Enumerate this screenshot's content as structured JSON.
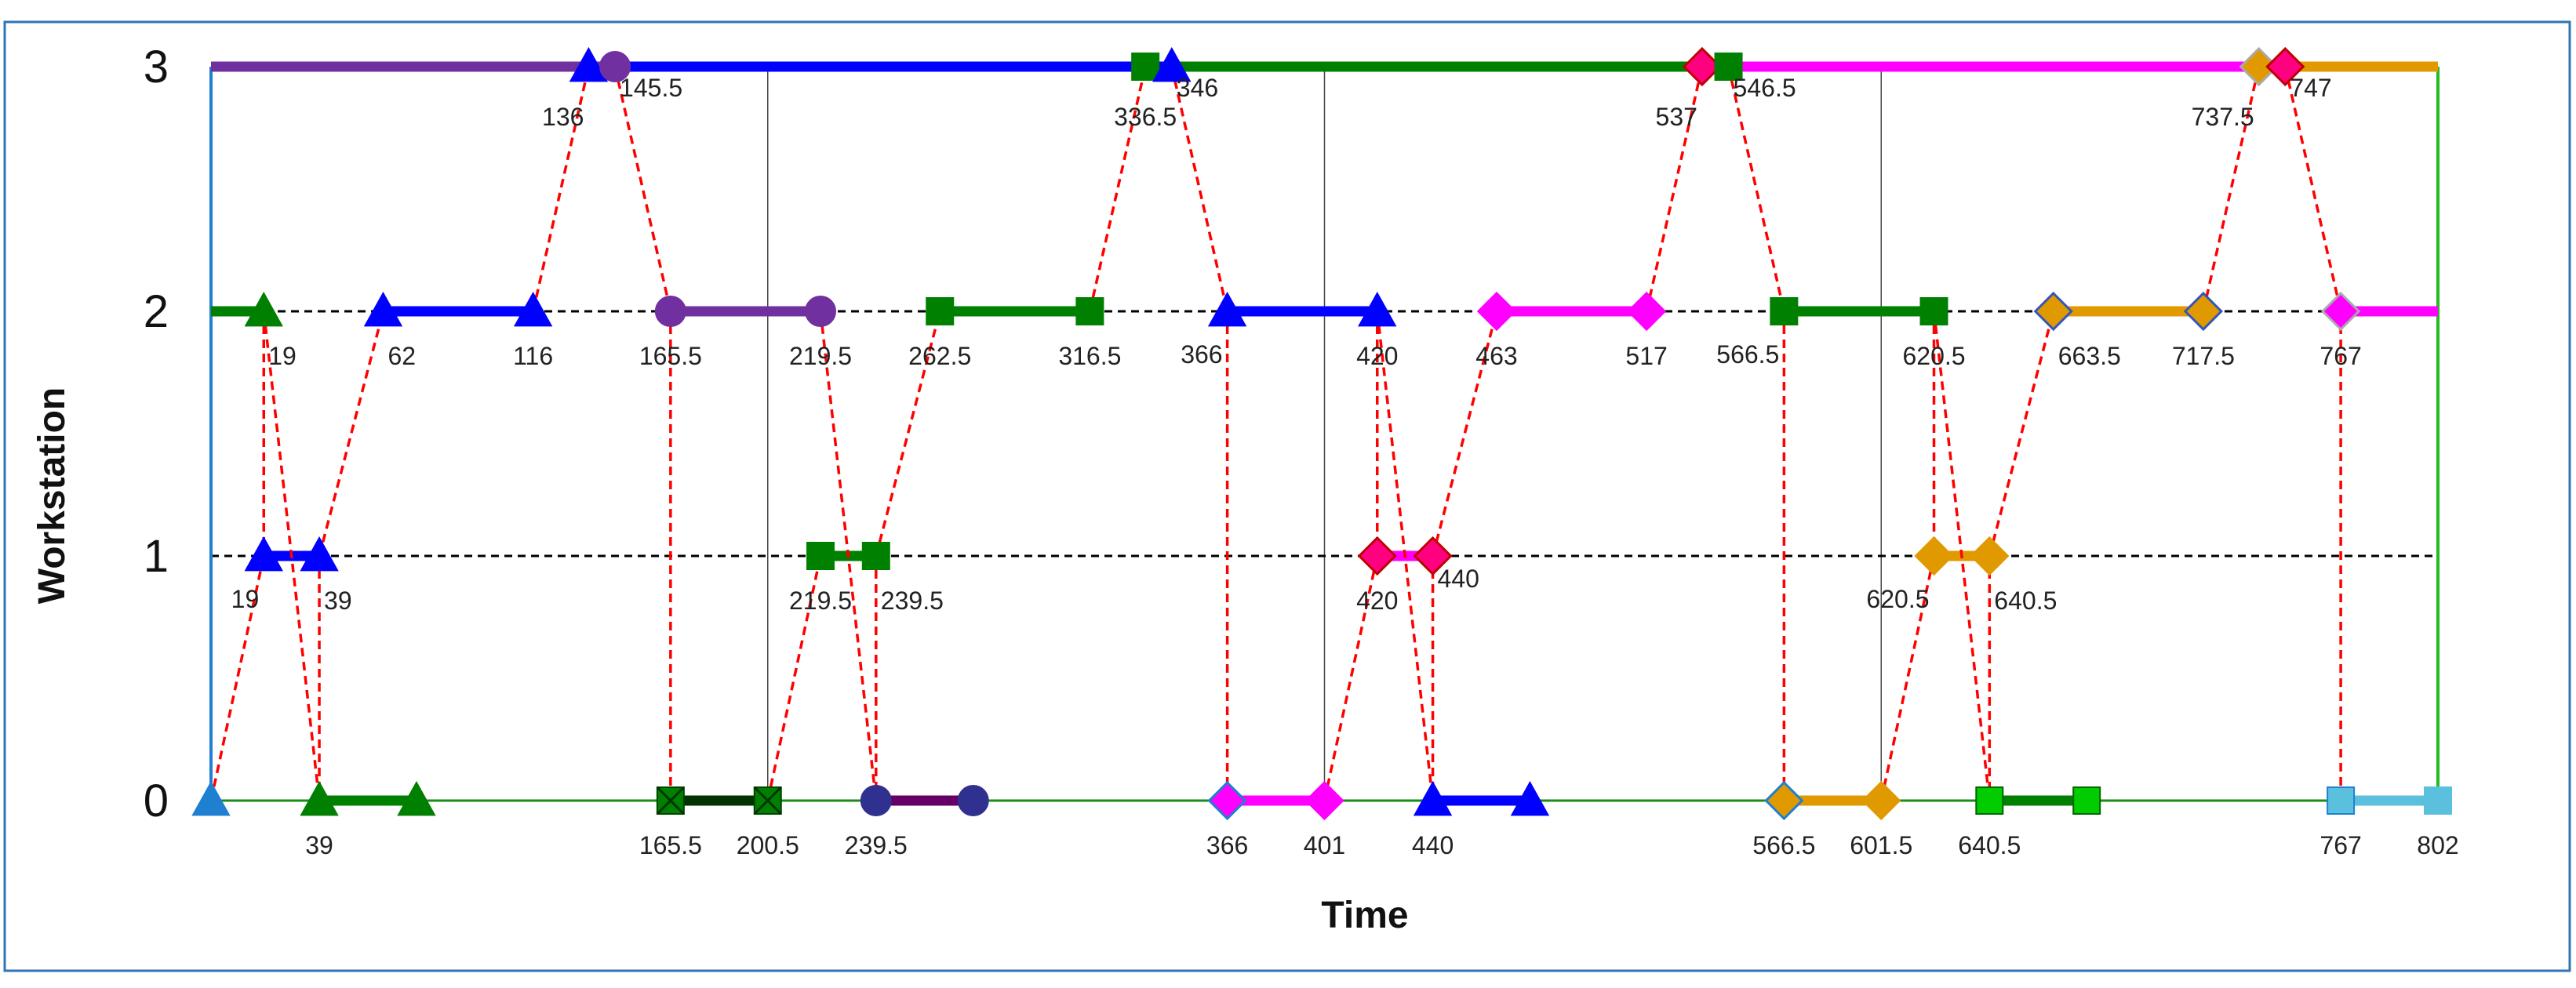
{
  "chart_data": {
    "type": "line",
    "title": "",
    "xlabel": "Time",
    "ylabel": "Workstation",
    "xlim": [
      0,
      802
    ],
    "ylim": [
      0,
      3
    ],
    "yticks": [
      "0",
      "1",
      "2",
      "3"
    ],
    "xtick_markers": [
      200.5,
      401,
      601.5
    ],
    "colors": {
      "frame": "#2e75b6",
      "left_axis": "#1f7fd0",
      "right_axis": "#22bb22",
      "baseline": "#1a8c1a",
      "connector": "#ff0000",
      "gridline": "#000000"
    },
    "baselines": [
      {
        "y": 0,
        "style": "solid"
      },
      {
        "y": 1,
        "style": "dashed"
      },
      {
        "y": 2,
        "style": "dashed"
      },
      {
        "y": 3,
        "style": "solid"
      }
    ],
    "segments": [
      {
        "name": "job-purple",
        "color": "#7030a0",
        "y": 3,
        "x1": 0,
        "x2": 145.5
      },
      {
        "name": "job-blue",
        "color": "#0000ff",
        "y": 3,
        "x1": 145.5,
        "x2": 346
      },
      {
        "name": "job-darkgreen",
        "color": "#008000",
        "y": 3,
        "x1": 346,
        "x2": 546.5
      },
      {
        "name": "job-magenta",
        "color": "#ff00ff",
        "y": 3,
        "x1": 546.5,
        "x2": 747
      },
      {
        "name": "job-orange",
        "color": "#e09a00",
        "y": 3,
        "x1": 747,
        "x2": 802
      },
      {
        "name": "job-green-triangle",
        "color": "#008000",
        "y": 2,
        "x1": 0,
        "x2": 19
      },
      {
        "name": "job-blue",
        "color": "#0000ff",
        "y": 2,
        "x1": 62,
        "x2": 116
      },
      {
        "name": "job-purple",
        "color": "#7030a0",
        "y": 2,
        "x1": 165.5,
        "x2": 219.5
      },
      {
        "name": "job-darkgreen",
        "color": "#008000",
        "y": 2,
        "x1": 262.5,
        "x2": 316.5
      },
      {
        "name": "job-blue",
        "color": "#0000ff",
        "y": 2,
        "x1": 366,
        "x2": 420
      },
      {
        "name": "job-magenta",
        "color": "#ff00ff",
        "y": 2,
        "x1": 463,
        "x2": 517
      },
      {
        "name": "job-darkgreen",
        "color": "#008000",
        "y": 2,
        "x1": 566.5,
        "x2": 620.5
      },
      {
        "name": "job-orange",
        "color": "#e09a00",
        "y": 2,
        "x1": 663.5,
        "x2": 717.5
      },
      {
        "name": "job-magenta",
        "color": "#ff00ff",
        "y": 2,
        "x1": 767,
        "x2": 802
      },
      {
        "name": "job-blue",
        "color": "#0000ff",
        "y": 1,
        "x1": 19,
        "x2": 39
      },
      {
        "name": "job-darkgreen",
        "color": "#008000",
        "y": 1,
        "x1": 219.5,
        "x2": 239.5
      },
      {
        "name": "job-magenta",
        "color": "#ff00ff",
        "y": 1,
        "x1": 420,
        "x2": 440
      },
      {
        "name": "job-orange",
        "color": "#e09a00",
        "y": 1,
        "x1": 620.5,
        "x2": 640.5
      },
      {
        "name": "job-green-triangle",
        "color": "#008000",
        "y": 0,
        "x1": 39,
        "x2": 74
      },
      {
        "name": "job-black-x",
        "color": "#003300",
        "y": 0,
        "x1": 165.5,
        "x2": 200.5
      },
      {
        "name": "job-purple",
        "color": "#660066",
        "y": 0,
        "x1": 239.5,
        "x2": 274.5
      },
      {
        "name": "job-magenta",
        "color": "#ff00ff",
        "y": 0,
        "x1": 366,
        "x2": 401
      },
      {
        "name": "job-blue",
        "color": "#0000ff",
        "y": 0,
        "x1": 440,
        "x2": 475
      },
      {
        "name": "job-orange",
        "color": "#e09a00",
        "y": 0,
        "x1": 566.5,
        "x2": 601.5
      },
      {
        "name": "job-green-square",
        "color": "#008000",
        "y": 0,
        "x1": 640.5,
        "x2": 675.5
      },
      {
        "name": "job-cyan",
        "color": "#5bc0de",
        "y": 0,
        "x1": 767,
        "x2": 802
      }
    ],
    "connectors": [
      [
        [
          0,
          0
        ],
        [
          19,
          1
        ]
      ],
      [
        [
          19,
          2
        ],
        [
          39,
          0
        ]
      ],
      [
        [
          19,
          2
        ],
        [
          19,
          1
        ]
      ],
      [
        [
          39,
          1
        ],
        [
          39,
          0
        ]
      ],
      [
        [
          39,
          1
        ],
        [
          62,
          2
        ]
      ],
      [
        [
          116,
          2
        ],
        [
          136,
          3
        ]
      ],
      [
        [
          145.5,
          3
        ],
        [
          165.5,
          2
        ]
      ],
      [
        [
          165.5,
          2
        ],
        [
          165.5,
          0
        ]
      ],
      [
        [
          200.5,
          0
        ],
        [
          219.5,
          1
        ]
      ],
      [
        [
          219.5,
          2
        ],
        [
          239.5,
          0
        ]
      ],
      [
        [
          239.5,
          1
        ],
        [
          239.5,
          0
        ]
      ],
      [
        [
          239.5,
          1
        ],
        [
          262.5,
          2
        ]
      ],
      [
        [
          316.5,
          2
        ],
        [
          336.5,
          3
        ]
      ],
      [
        [
          346,
          3
        ],
        [
          366,
          2
        ]
      ],
      [
        [
          366,
          2
        ],
        [
          366,
          0
        ]
      ],
      [
        [
          401,
          0
        ],
        [
          420,
          1
        ]
      ],
      [
        [
          420,
          2
        ],
        [
          440,
          0
        ]
      ],
      [
        [
          420,
          2
        ],
        [
          420,
          1
        ]
      ],
      [
        [
          440,
          1
        ],
        [
          440,
          0
        ]
      ],
      [
        [
          440,
          1
        ],
        [
          463,
          2
        ]
      ],
      [
        [
          517,
          2
        ],
        [
          537,
          3
        ]
      ],
      [
        [
          546.5,
          3
        ],
        [
          566.5,
          2
        ]
      ],
      [
        [
          566.5,
          2
        ],
        [
          566.5,
          0
        ]
      ],
      [
        [
          601.5,
          0
        ],
        [
          620.5,
          1
        ]
      ],
      [
        [
          620.5,
          2
        ],
        [
          640.5,
          0
        ]
      ],
      [
        [
          620.5,
          2
        ],
        [
          620.5,
          1
        ]
      ],
      [
        [
          640.5,
          1
        ],
        [
          640.5,
          0
        ]
      ],
      [
        [
          640.5,
          1
        ],
        [
          663.5,
          2
        ]
      ],
      [
        [
          717.5,
          2
        ],
        [
          737.5,
          3
        ]
      ],
      [
        [
          747,
          3
        ],
        [
          767,
          2
        ]
      ],
      [
        [
          767,
          2
        ],
        [
          767,
          0
        ]
      ]
    ],
    "markers": [
      {
        "x": 136,
        "y": 3,
        "shape": "triangle",
        "color": "#0000ff"
      },
      {
        "x": 145.5,
        "y": 3,
        "shape": "circle",
        "color": "#7030a0"
      },
      {
        "x": 336.5,
        "y": 3,
        "shape": "square",
        "color": "#008000"
      },
      {
        "x": 346,
        "y": 3,
        "shape": "triangle",
        "color": "#0000ff"
      },
      {
        "x": 537,
        "y": 3,
        "shape": "diamond",
        "color": "#ff0080",
        "edge": "#c00000"
      },
      {
        "x": 546.5,
        "y": 3,
        "shape": "square",
        "color": "#008000"
      },
      {
        "x": 737.5,
        "y": 3,
        "shape": "diamond",
        "color": "#e09a00",
        "edge": "#aaaaaa"
      },
      {
        "x": 747,
        "y": 3,
        "shape": "diamond",
        "color": "#ff0080",
        "edge": "#c00000"
      },
      {
        "x": 19,
        "y": 2,
        "shape": "triangle",
        "color": "#008000"
      },
      {
        "x": 62,
        "y": 2,
        "shape": "triangle",
        "color": "#0000ff"
      },
      {
        "x": 116,
        "y": 2,
        "shape": "triangle",
        "color": "#0000ff"
      },
      {
        "x": 165.5,
        "y": 2,
        "shape": "circle",
        "color": "#7030a0"
      },
      {
        "x": 219.5,
        "y": 2,
        "shape": "circle",
        "color": "#7030a0"
      },
      {
        "x": 262.5,
        "y": 2,
        "shape": "square",
        "color": "#008000"
      },
      {
        "x": 316.5,
        "y": 2,
        "shape": "square",
        "color": "#008000"
      },
      {
        "x": 366,
        "y": 2,
        "shape": "triangle",
        "color": "#0000ff"
      },
      {
        "x": 420,
        "y": 2,
        "shape": "triangle",
        "color": "#0000ff"
      },
      {
        "x": 463,
        "y": 2,
        "shape": "diamond",
        "color": "#ff00ff"
      },
      {
        "x": 517,
        "y": 2,
        "shape": "diamond",
        "color": "#ff00ff"
      },
      {
        "x": 566.5,
        "y": 2,
        "shape": "square",
        "color": "#008000"
      },
      {
        "x": 620.5,
        "y": 2,
        "shape": "square",
        "color": "#008000"
      },
      {
        "x": 663.5,
        "y": 2,
        "shape": "diamond",
        "color": "#e09a00",
        "edge": "#3355bb"
      },
      {
        "x": 717.5,
        "y": 2,
        "shape": "diamond",
        "color": "#e09a00",
        "edge": "#3355bb"
      },
      {
        "x": 767,
        "y": 2,
        "shape": "diamond",
        "color": "#ff00ff",
        "edge": "#aaaaaa"
      },
      {
        "x": 19,
        "y": 1,
        "shape": "triangle",
        "color": "#0000ff"
      },
      {
        "x": 39,
        "y": 1,
        "shape": "triangle",
        "color": "#0000ff"
      },
      {
        "x": 219.5,
        "y": 1,
        "shape": "square",
        "color": "#008000"
      },
      {
        "x": 239.5,
        "y": 1,
        "shape": "square",
        "color": "#008000"
      },
      {
        "x": 420,
        "y": 1,
        "shape": "diamond",
        "color": "#ff0080",
        "edge": "#c00000"
      },
      {
        "x": 440,
        "y": 1,
        "shape": "diamond",
        "color": "#ff0080",
        "edge": "#c00000"
      },
      {
        "x": 620.5,
        "y": 1,
        "shape": "diamond",
        "color": "#e09a00"
      },
      {
        "x": 640.5,
        "y": 1,
        "shape": "diamond",
        "color": "#e09a00"
      },
      {
        "x": 0,
        "y": 0,
        "shape": "triangle",
        "color": "#1f7fd0"
      },
      {
        "x": 39,
        "y": 0,
        "shape": "triangle",
        "color": "#008000"
      },
      {
        "x": 74,
        "y": 0,
        "shape": "triangle",
        "color": "#008000"
      },
      {
        "x": 165.5,
        "y": 0,
        "shape": "xsquare",
        "color": "#008000"
      },
      {
        "x": 200.5,
        "y": 0,
        "shape": "xsquare",
        "color": "#008000"
      },
      {
        "x": 239.5,
        "y": 0,
        "shape": "circle",
        "color": "#303090"
      },
      {
        "x": 274.5,
        "y": 0,
        "shape": "circle",
        "color": "#303090"
      },
      {
        "x": 366,
        "y": 0,
        "shape": "diamond",
        "color": "#ff00ff",
        "edge": "#1f7fd0"
      },
      {
        "x": 401,
        "y": 0,
        "shape": "diamond",
        "color": "#ff00ff"
      },
      {
        "x": 440,
        "y": 0,
        "shape": "triangle",
        "color": "#0000ff"
      },
      {
        "x": 475,
        "y": 0,
        "shape": "triangle",
        "color": "#0000ff"
      },
      {
        "x": 566.5,
        "y": 0,
        "shape": "diamond",
        "color": "#e09a00",
        "edge": "#1f7fd0"
      },
      {
        "x": 601.5,
        "y": 0,
        "shape": "diamond",
        "color": "#e09a00"
      },
      {
        "x": 640.5,
        "y": 0,
        "shape": "square",
        "color": "#00cc00",
        "edge": "#006600"
      },
      {
        "x": 675.5,
        "y": 0,
        "shape": "square",
        "color": "#00cc00",
        "edge": "#006600"
      },
      {
        "x": 767,
        "y": 0,
        "shape": "square",
        "color": "#5bc0de",
        "edge": "#1f7fd0"
      },
      {
        "x": 802,
        "y": 0,
        "shape": "square",
        "color": "#5bc0de"
      }
    ],
    "data_labels": [
      {
        "text": "136",
        "x": 136,
        "y": 3,
        "pos": "below-left"
      },
      {
        "text": "145.5",
        "x": 145.5,
        "y": 3,
        "pos": "below-right"
      },
      {
        "text": "336.5",
        "x": 336.5,
        "y": 3,
        "pos": "below"
      },
      {
        "text": "346",
        "x": 346,
        "y": 3,
        "pos": "below-right"
      },
      {
        "text": "537",
        "x": 537,
        "y": 3,
        "pos": "below-left"
      },
      {
        "text": "546.5",
        "x": 546.5,
        "y": 3,
        "pos": "below-right"
      },
      {
        "text": "737.5",
        "x": 737.5,
        "y": 3,
        "pos": "below-left"
      },
      {
        "text": "747",
        "x": 747,
        "y": 3,
        "pos": "below-right"
      },
      {
        "text": "19",
        "x": 19,
        "y": 2,
        "pos": "below-right"
      },
      {
        "text": "62",
        "x": 62,
        "y": 2,
        "pos": "below-right"
      },
      {
        "text": "116",
        "x": 116,
        "y": 2,
        "pos": "below"
      },
      {
        "text": "165.5",
        "x": 165.5,
        "y": 2,
        "pos": "below"
      },
      {
        "text": "219.5",
        "x": 219.5,
        "y": 2,
        "pos": "below"
      },
      {
        "text": "262.5",
        "x": 262.5,
        "y": 2,
        "pos": "below"
      },
      {
        "text": "316.5",
        "x": 316.5,
        "y": 2,
        "pos": "below"
      },
      {
        "text": "366",
        "x": 366,
        "y": 2,
        "pos": "below-left"
      },
      {
        "text": "420",
        "x": 420,
        "y": 2,
        "pos": "below"
      },
      {
        "text": "463",
        "x": 463,
        "y": 2,
        "pos": "below"
      },
      {
        "text": "517",
        "x": 517,
        "y": 2,
        "pos": "below"
      },
      {
        "text": "566.5",
        "x": 566.5,
        "y": 2,
        "pos": "below-left"
      },
      {
        "text": "620.5",
        "x": 620.5,
        "y": 2,
        "pos": "below"
      },
      {
        "text": "663.5",
        "x": 663.5,
        "y": 2,
        "pos": "below-right"
      },
      {
        "text": "717.5",
        "x": 717.5,
        "y": 2,
        "pos": "below"
      },
      {
        "text": "767",
        "x": 767,
        "y": 2,
        "pos": "below"
      },
      {
        "text": "19",
        "x": 19,
        "y": 1,
        "pos": "below-left"
      },
      {
        "text": "39",
        "x": 39,
        "y": 1,
        "pos": "below-right"
      },
      {
        "text": "219.5",
        "x": 219.5,
        "y": 1,
        "pos": "below"
      },
      {
        "text": "239.5",
        "x": 239.5,
        "y": 1,
        "pos": "below-right"
      },
      {
        "text": "420",
        "x": 420,
        "y": 1,
        "pos": "below"
      },
      {
        "text": "440",
        "x": 440,
        "y": 1,
        "pos": "below-right"
      },
      {
        "text": "620.5",
        "x": 620.5,
        "y": 1,
        "pos": "below-left"
      },
      {
        "text": "640.5",
        "x": 640.5,
        "y": 1,
        "pos": "below-right"
      },
      {
        "text": "39",
        "x": 39,
        "y": 0,
        "pos": "below"
      },
      {
        "text": "165.5",
        "x": 165.5,
        "y": 0,
        "pos": "below"
      },
      {
        "text": "200.5",
        "x": 200.5,
        "y": 0,
        "pos": "below"
      },
      {
        "text": "239.5",
        "x": 239.5,
        "y": 0,
        "pos": "below"
      },
      {
        "text": "366",
        "x": 366,
        "y": 0,
        "pos": "below"
      },
      {
        "text": "401",
        "x": 401,
        "y": 0,
        "pos": "below"
      },
      {
        "text": "440",
        "x": 440,
        "y": 0,
        "pos": "below"
      },
      {
        "text": "566.5",
        "x": 566.5,
        "y": 0,
        "pos": "below"
      },
      {
        "text": "601.5",
        "x": 601.5,
        "y": 0,
        "pos": "below"
      },
      {
        "text": "640.5",
        "x": 640.5,
        "y": 0,
        "pos": "below"
      },
      {
        "text": "767",
        "x": 767,
        "y": 0,
        "pos": "below"
      },
      {
        "text": "802",
        "x": 802,
        "y": 0,
        "pos": "below"
      }
    ]
  }
}
